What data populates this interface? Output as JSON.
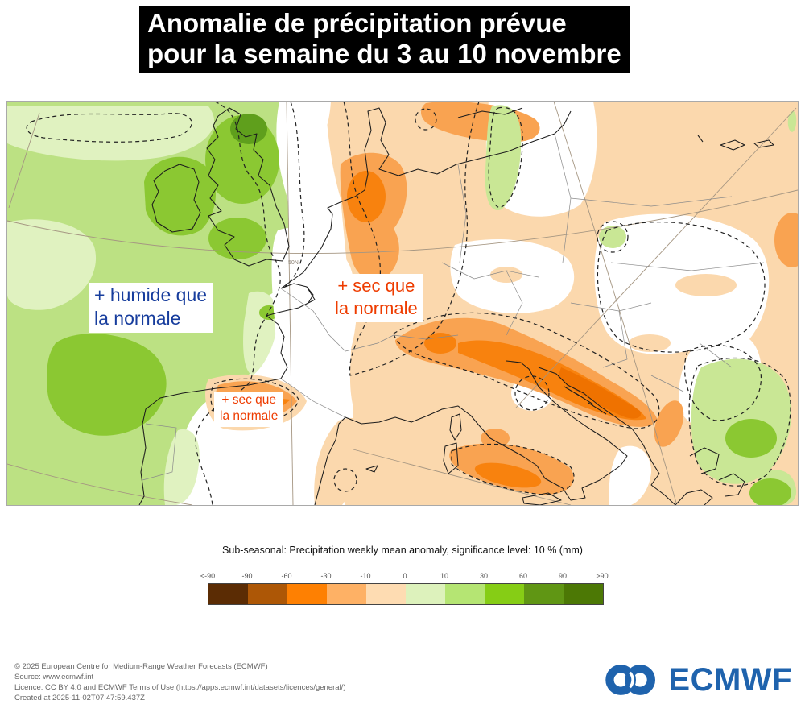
{
  "title": {
    "line1": "Anomalie de précipitation prévue",
    "line2": "pour la semaine du 3 au 10 novembre"
  },
  "map": {
    "annotation_wet": {
      "line1": "+ humide que",
      "line2": "la normale",
      "color": "#173d9d"
    },
    "annotation_dry_main": {
      "line1": "+ sec que",
      "line2": "la normale",
      "color": "#ee3c00"
    },
    "annotation_dry_small": {
      "line1": "+ sec que",
      "line2": "la normale",
      "color": "#ee3c00"
    },
    "graticule_label": "50N",
    "palette": {
      "wet_light": "#e0f2c0",
      "wet_main": "#bce183",
      "wet_medium": "#8bc832",
      "wet_dark": "#5f9f1c",
      "dry_light": "#fbd8ad",
      "dry_medium": "#f9a351",
      "dry_strong": "#f8820e",
      "dry_core": "#ef7200"
    }
  },
  "legend": {
    "title": "Sub-seasonal: Precipitation weekly mean anomaly, significance level: 10 % (mm)",
    "ticks": [
      "<-90",
      "-90",
      "-60",
      "-30",
      "-10",
      "0",
      "10",
      "30",
      "60",
      "90",
      ">90"
    ],
    "swatches": [
      "#5b2c04",
      "#ad5706",
      "#fe8002",
      "#feb165",
      "#fedcb2",
      "#ddf2bc",
      "#b5e573",
      "#86cd15",
      "#609614",
      "#4c7805"
    ]
  },
  "footer": {
    "lines": [
      "© 2025 European Centre for Medium-Range Weather Forecasts (ECMWF)",
      "Source: www.ecmwf.int",
      "Licence: CC BY 4.0 and ECMWF Terms of Use (https://apps.ecmwf.int/datasets/licences/general/)",
      "Created at 2025-11-02T07:47:59.437Z"
    ]
  },
  "logo": {
    "text": "ECMWF",
    "color": "#1f63ad"
  }
}
